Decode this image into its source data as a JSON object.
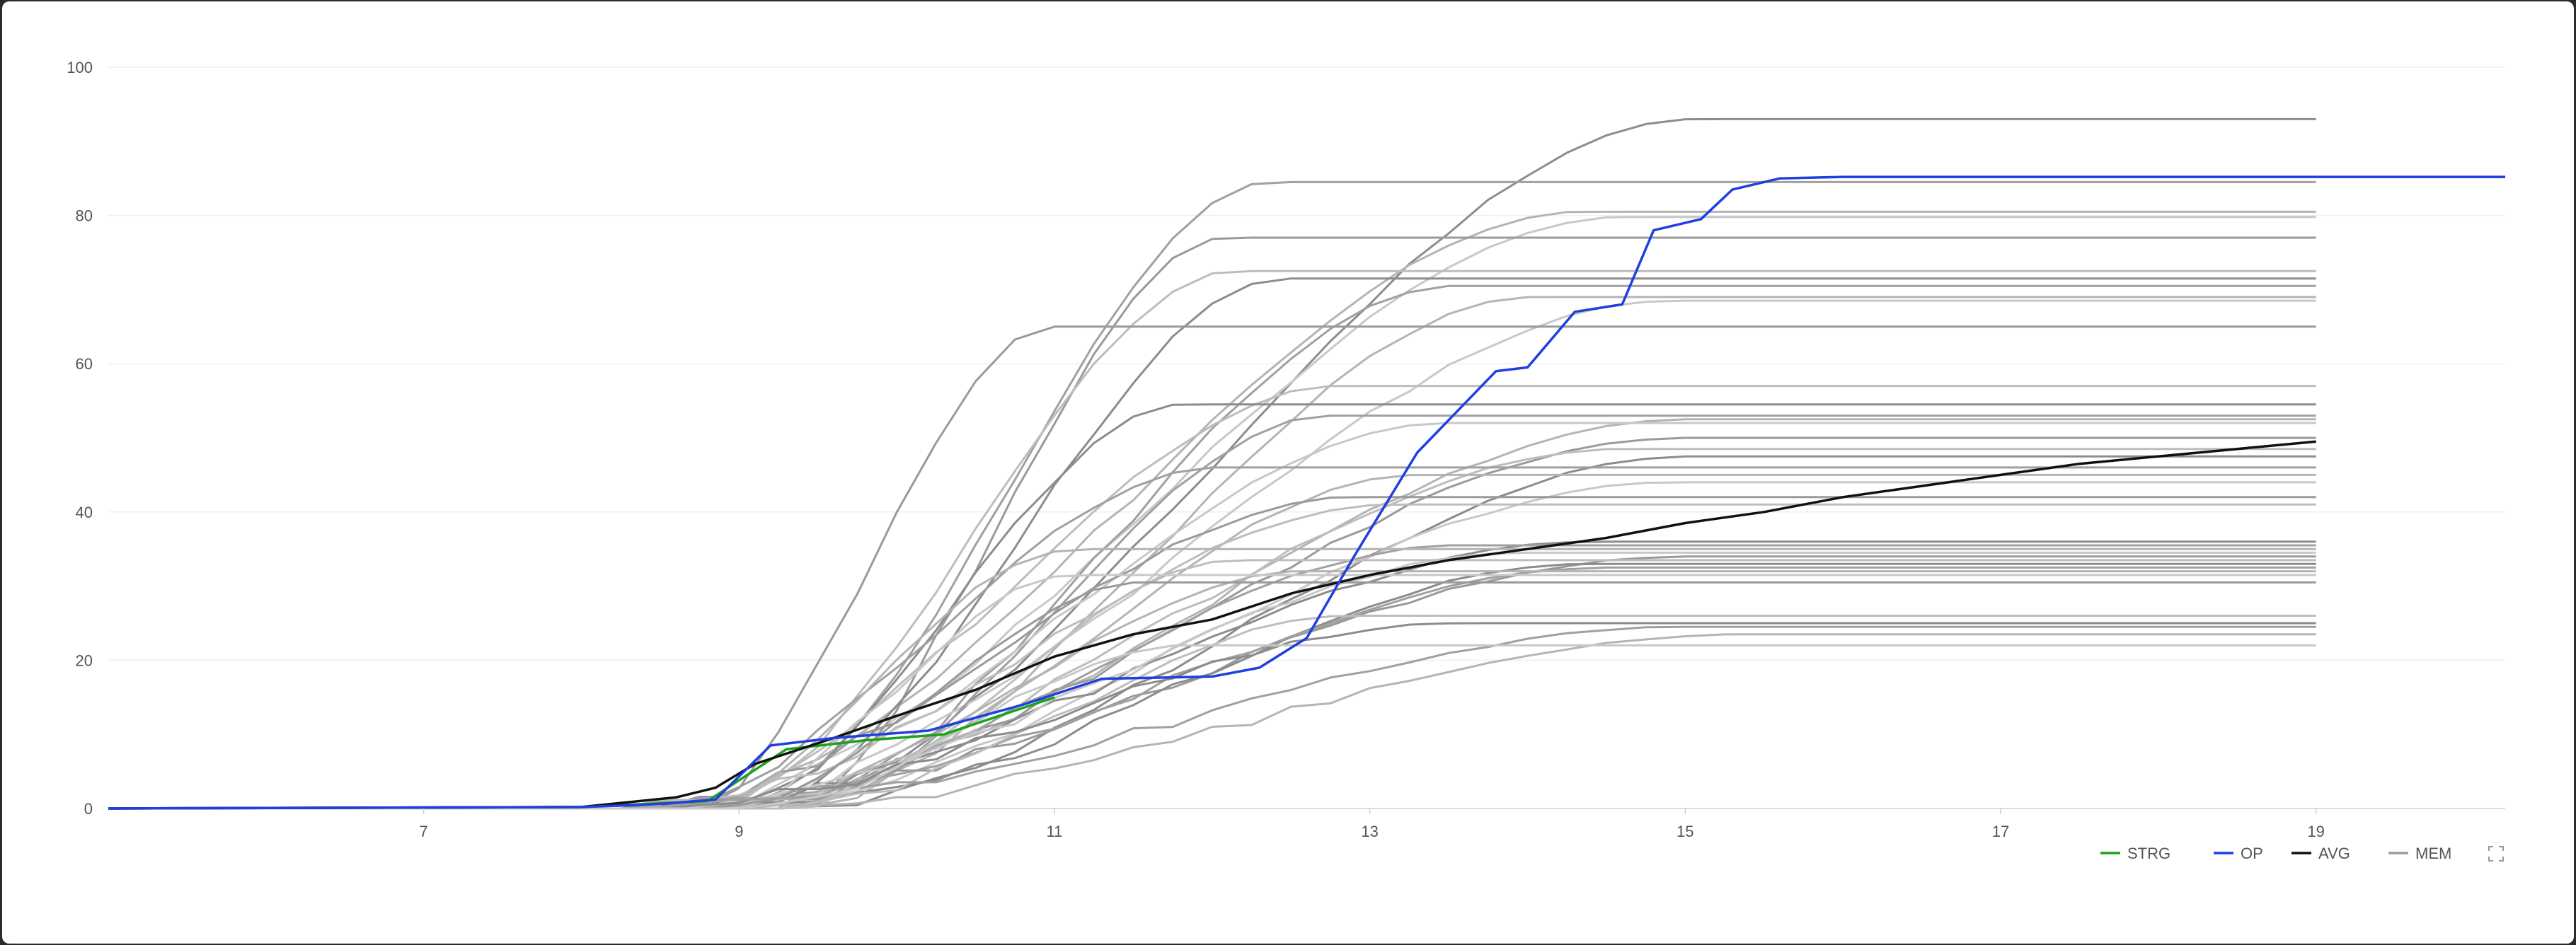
{
  "chart_data": {
    "type": "line",
    "title": "",
    "xlabel": "",
    "ylabel": "",
    "xlim": [
      5,
      20.2
    ],
    "ylim": [
      0,
      100
    ],
    "x_ticks": [
      "7",
      "9",
      "11",
      "13",
      "15",
      "17",
      "19"
    ],
    "y_ticks": [
      "0",
      "20",
      "40",
      "60",
      "80",
      "100"
    ],
    "grid": "horizontal",
    "legend_position": "bottom-right",
    "legend": [
      {
        "label": "STRG",
        "color": "#1aa31a"
      },
      {
        "label": "OP",
        "color": "#1f3fe0"
      },
      {
        "label": "AVG",
        "color": "#111111"
      },
      {
        "label": "MEM",
        "color": "#9a9a9a"
      }
    ],
    "series": [
      {
        "name": "OP",
        "color": "#1f3fe0",
        "points": [
          [
            5,
            0
          ],
          [
            8,
            0.2
          ],
          [
            8.5,
            0.6
          ],
          [
            8.85,
            1.2
          ],
          [
            9.2,
            8.5
          ],
          [
            9.6,
            9.5
          ],
          [
            10.2,
            10.5
          ],
          [
            10.8,
            14
          ],
          [
            11.3,
            17.5
          ],
          [
            12,
            17.8
          ],
          [
            12.3,
            19
          ],
          [
            12.6,
            23
          ],
          [
            12.9,
            34
          ],
          [
            13.3,
            48
          ],
          [
            13.8,
            59
          ],
          [
            14,
            59.5
          ],
          [
            14.3,
            67
          ],
          [
            14.6,
            68
          ],
          [
            14.8,
            78
          ],
          [
            15.1,
            79.5
          ],
          [
            15.3,
            83.5
          ],
          [
            15.6,
            85
          ],
          [
            16,
            85.2
          ],
          [
            20.2,
            85.2
          ]
        ]
      },
      {
        "name": "STRG",
        "color": "#1aa31a",
        "points": [
          [
            5,
            0
          ],
          [
            8,
            0.2
          ],
          [
            8.8,
            1
          ],
          [
            9.3,
            8
          ],
          [
            9.8,
            9.2
          ],
          [
            10.3,
            10
          ],
          [
            11,
            15
          ]
        ]
      },
      {
        "name": "AVG",
        "color": "#111111",
        "points": [
          [
            5,
            0
          ],
          [
            8,
            0.2
          ],
          [
            8.6,
            1.5
          ],
          [
            8.85,
            2.8
          ],
          [
            9.1,
            6
          ],
          [
            9.6,
            9.5
          ],
          [
            10,
            12.5
          ],
          [
            10.5,
            16
          ],
          [
            11,
            20.5
          ],
          [
            11.5,
            23.5
          ],
          [
            12,
            25.5
          ],
          [
            12.5,
            29
          ],
          [
            13,
            31.5
          ],
          [
            13.5,
            33.5
          ],
          [
            14,
            35
          ],
          [
            14.5,
            36.5
          ],
          [
            15,
            38.5
          ],
          [
            15.5,
            40
          ],
          [
            16,
            42
          ],
          [
            16.5,
            43.5
          ],
          [
            17,
            45
          ],
          [
            17.5,
            46.5
          ],
          [
            18,
            47.5
          ],
          [
            18.5,
            48.5
          ],
          [
            19,
            49.5
          ]
        ]
      }
    ]
  }
}
